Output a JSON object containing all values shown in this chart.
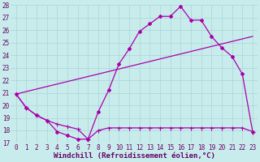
{
  "xlabel": "Windchill (Refroidissement éolien,°C)",
  "xlim": [
    -0.5,
    23.5
  ],
  "ylim": [
    17,
    28
  ],
  "xticks": [
    0,
    1,
    2,
    3,
    4,
    5,
    6,
    7,
    8,
    9,
    10,
    11,
    12,
    13,
    14,
    15,
    16,
    17,
    18,
    19,
    20,
    21,
    22,
    23
  ],
  "yticks": [
    17,
    18,
    19,
    20,
    21,
    22,
    23,
    24,
    25,
    26,
    27,
    28
  ],
  "bg_color": "#c8ecec",
  "grid_color": "#b0d8d8",
  "line_color": "#aa00aa",
  "line1_x": [
    0,
    1,
    2,
    3,
    4,
    5,
    6,
    7,
    8,
    9,
    10,
    11,
    12,
    13,
    14,
    15,
    16,
    17,
    18,
    19,
    20,
    21,
    22,
    23
  ],
  "line1_y": [
    20.9,
    19.8,
    19.2,
    18.8,
    17.9,
    17.6,
    17.3,
    17.3,
    19.5,
    21.2,
    23.3,
    24.5,
    25.9,
    26.5,
    27.1,
    27.1,
    27.9,
    26.8,
    26.8,
    25.5,
    24.6,
    23.9,
    22.5,
    17.9
  ],
  "line2_x": [
    0,
    1,
    2,
    3,
    4,
    5,
    6,
    7,
    8,
    9,
    10,
    11,
    12,
    13,
    14,
    15,
    16,
    17,
    18,
    19,
    20,
    21,
    22,
    23
  ],
  "line2_y": [
    20.9,
    19.8,
    19.2,
    18.8,
    18.5,
    18.3,
    18.1,
    17.3,
    18.0,
    18.2,
    18.2,
    18.2,
    18.2,
    18.2,
    18.2,
    18.2,
    18.2,
    18.2,
    18.2,
    18.2,
    18.2,
    18.2,
    18.2,
    17.9
  ],
  "line3_x": [
    0,
    23
  ],
  "line3_y": [
    20.9,
    25.5
  ],
  "font_color": "#660066",
  "tick_fontsize": 5.5,
  "xlabel_fontsize": 6.5,
  "markersize": 2.0
}
